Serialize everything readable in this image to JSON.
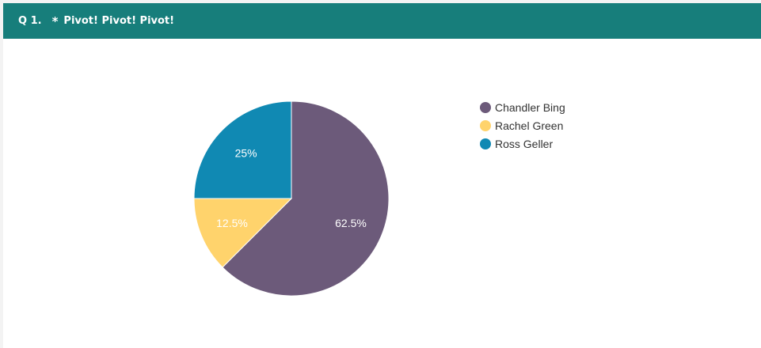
{
  "question": {
    "number": "Q 1.",
    "required_marker": "*",
    "title": "Pivot! Pivot! Pivot!"
  },
  "chart_data": {
    "type": "pie",
    "categories": [
      "Chandler Bing",
      "Rachel Green",
      "Ross Geller"
    ],
    "values": [
      62.5,
      12.5,
      25
    ],
    "labels": [
      "62.5%",
      "12.5%",
      "25%"
    ],
    "colors": [
      "#6c5a7a",
      "#ffd36c",
      "#1089b3"
    ],
    "legend_position": "right"
  }
}
